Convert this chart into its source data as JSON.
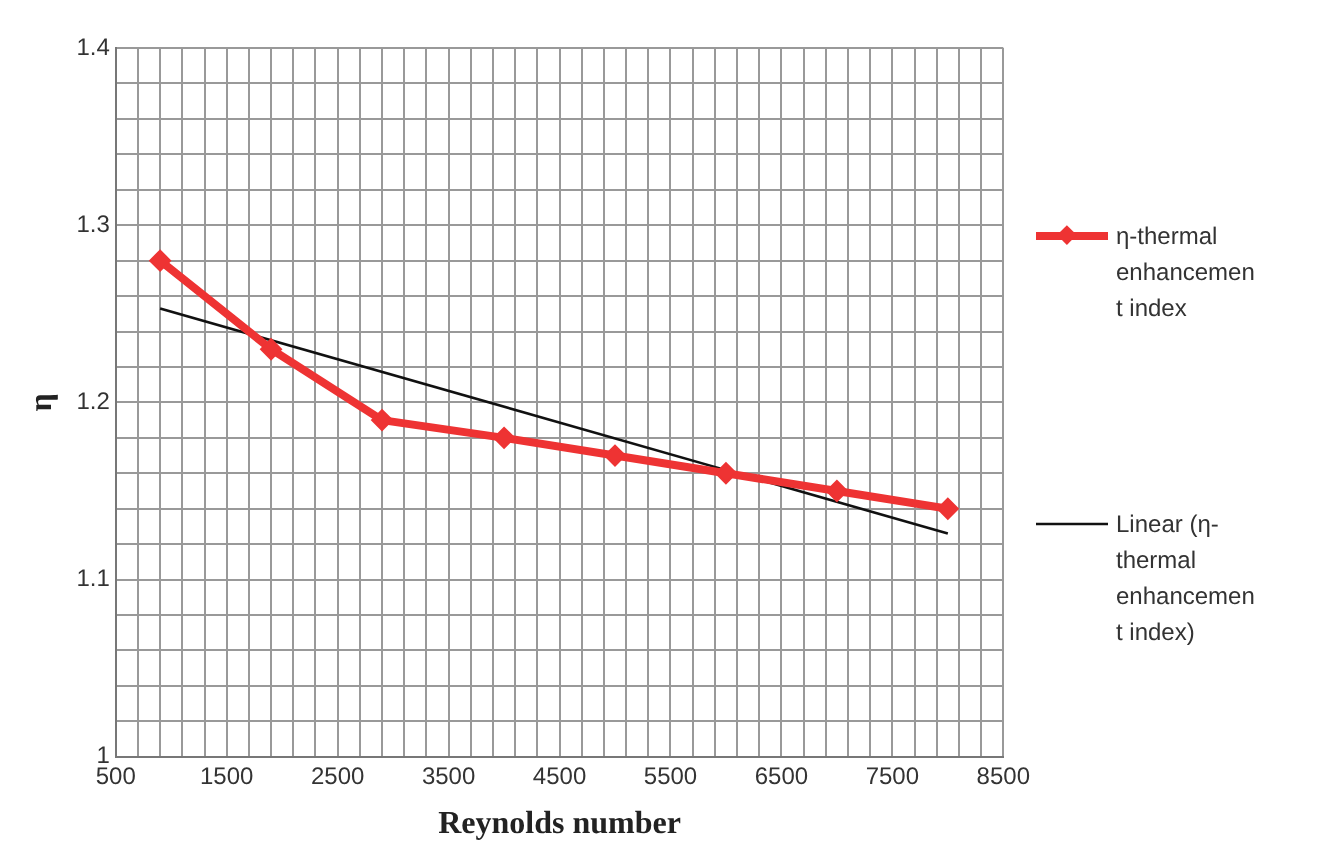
{
  "chart_data": {
    "type": "line",
    "xlabel": "Reynolds number",
    "ylabel": "η",
    "xlim": [
      500,
      8500
    ],
    "ylim": [
      1,
      1.4
    ],
    "xticks": [
      500,
      {
        "value": 700,
        "label": null
      },
      {
        "value": 900,
        "label": null
      },
      {
        "value": 1100,
        "label": null
      },
      {
        "value": 1300,
        "label": null
      },
      1500,
      {
        "value": 1700,
        "label": null
      },
      {
        "value": 1900,
        "label": null
      },
      {
        "value": 2100,
        "label": null
      },
      {
        "value": 2300,
        "label": null
      },
      2500,
      {
        "value": 2700,
        "label": null
      },
      {
        "value": 2900,
        "label": null
      },
      {
        "value": 3100,
        "label": null
      },
      {
        "value": 3300,
        "label": null
      },
      3500,
      {
        "value": 3700,
        "label": null
      },
      {
        "value": 3900,
        "label": null
      },
      {
        "value": 4100,
        "label": null
      },
      {
        "value": 4300,
        "label": null
      },
      4500,
      {
        "value": 4700,
        "label": null
      },
      {
        "value": 4900,
        "label": null
      },
      {
        "value": 5100,
        "label": null
      },
      {
        "value": 5300,
        "label": null
      },
      5500,
      {
        "value": 5700,
        "label": null
      },
      {
        "value": 5900,
        "label": null
      },
      {
        "value": 6100,
        "label": null
      },
      {
        "value": 6300,
        "label": null
      },
      6500,
      {
        "value": 6700,
        "label": null
      },
      {
        "value": 6900,
        "label": null
      },
      {
        "value": 7100,
        "label": null
      },
      {
        "value": 7300,
        "label": null
      },
      7500,
      {
        "value": 7700,
        "label": null
      },
      {
        "value": 7900,
        "label": null
      },
      {
        "value": 8100,
        "label": null
      },
      {
        "value": 8300,
        "label": null
      },
      8500
    ],
    "yticks": [
      1,
      {
        "value": 1.02,
        "label": null
      },
      {
        "value": 1.04,
        "label": null
      },
      {
        "value": 1.06,
        "label": null
      },
      {
        "value": 1.08,
        "label": null
      },
      1.1,
      {
        "value": 1.12,
        "label": null
      },
      {
        "value": 1.14,
        "label": null
      },
      {
        "value": 1.16,
        "label": null
      },
      {
        "value": 1.18,
        "label": null
      },
      1.2,
      {
        "value": 1.22,
        "label": null
      },
      {
        "value": 1.24,
        "label": null
      },
      {
        "value": 1.26,
        "label": null
      },
      {
        "value": 1.28,
        "label": null
      },
      1.3,
      {
        "value": 1.32,
        "label": null
      },
      {
        "value": 1.34,
        "label": null
      },
      {
        "value": 1.36,
        "label": null
      },
      {
        "value": 1.38,
        "label": null
      },
      1.4
    ],
    "grid": true,
    "legend": "right",
    "marker": "diamond",
    "series": [
      {
        "name": "η-thermal enhancement index",
        "color": "#ee3333",
        "x": [
          900,
          1900,
          2900,
          4000,
          5000,
          6000,
          7000,
          8000
        ],
        "values": [
          1.28,
          1.23,
          1.19,
          1.18,
          1.17,
          1.16,
          1.15,
          1.14
        ]
      },
      {
        "name": "Linear (η-thermal enhancement index)",
        "color": "#111111",
        "type": "line",
        "marker": "none",
        "x": [
          900,
          8000
        ],
        "values": [
          1.253,
          1.126
        ]
      }
    ]
  }
}
